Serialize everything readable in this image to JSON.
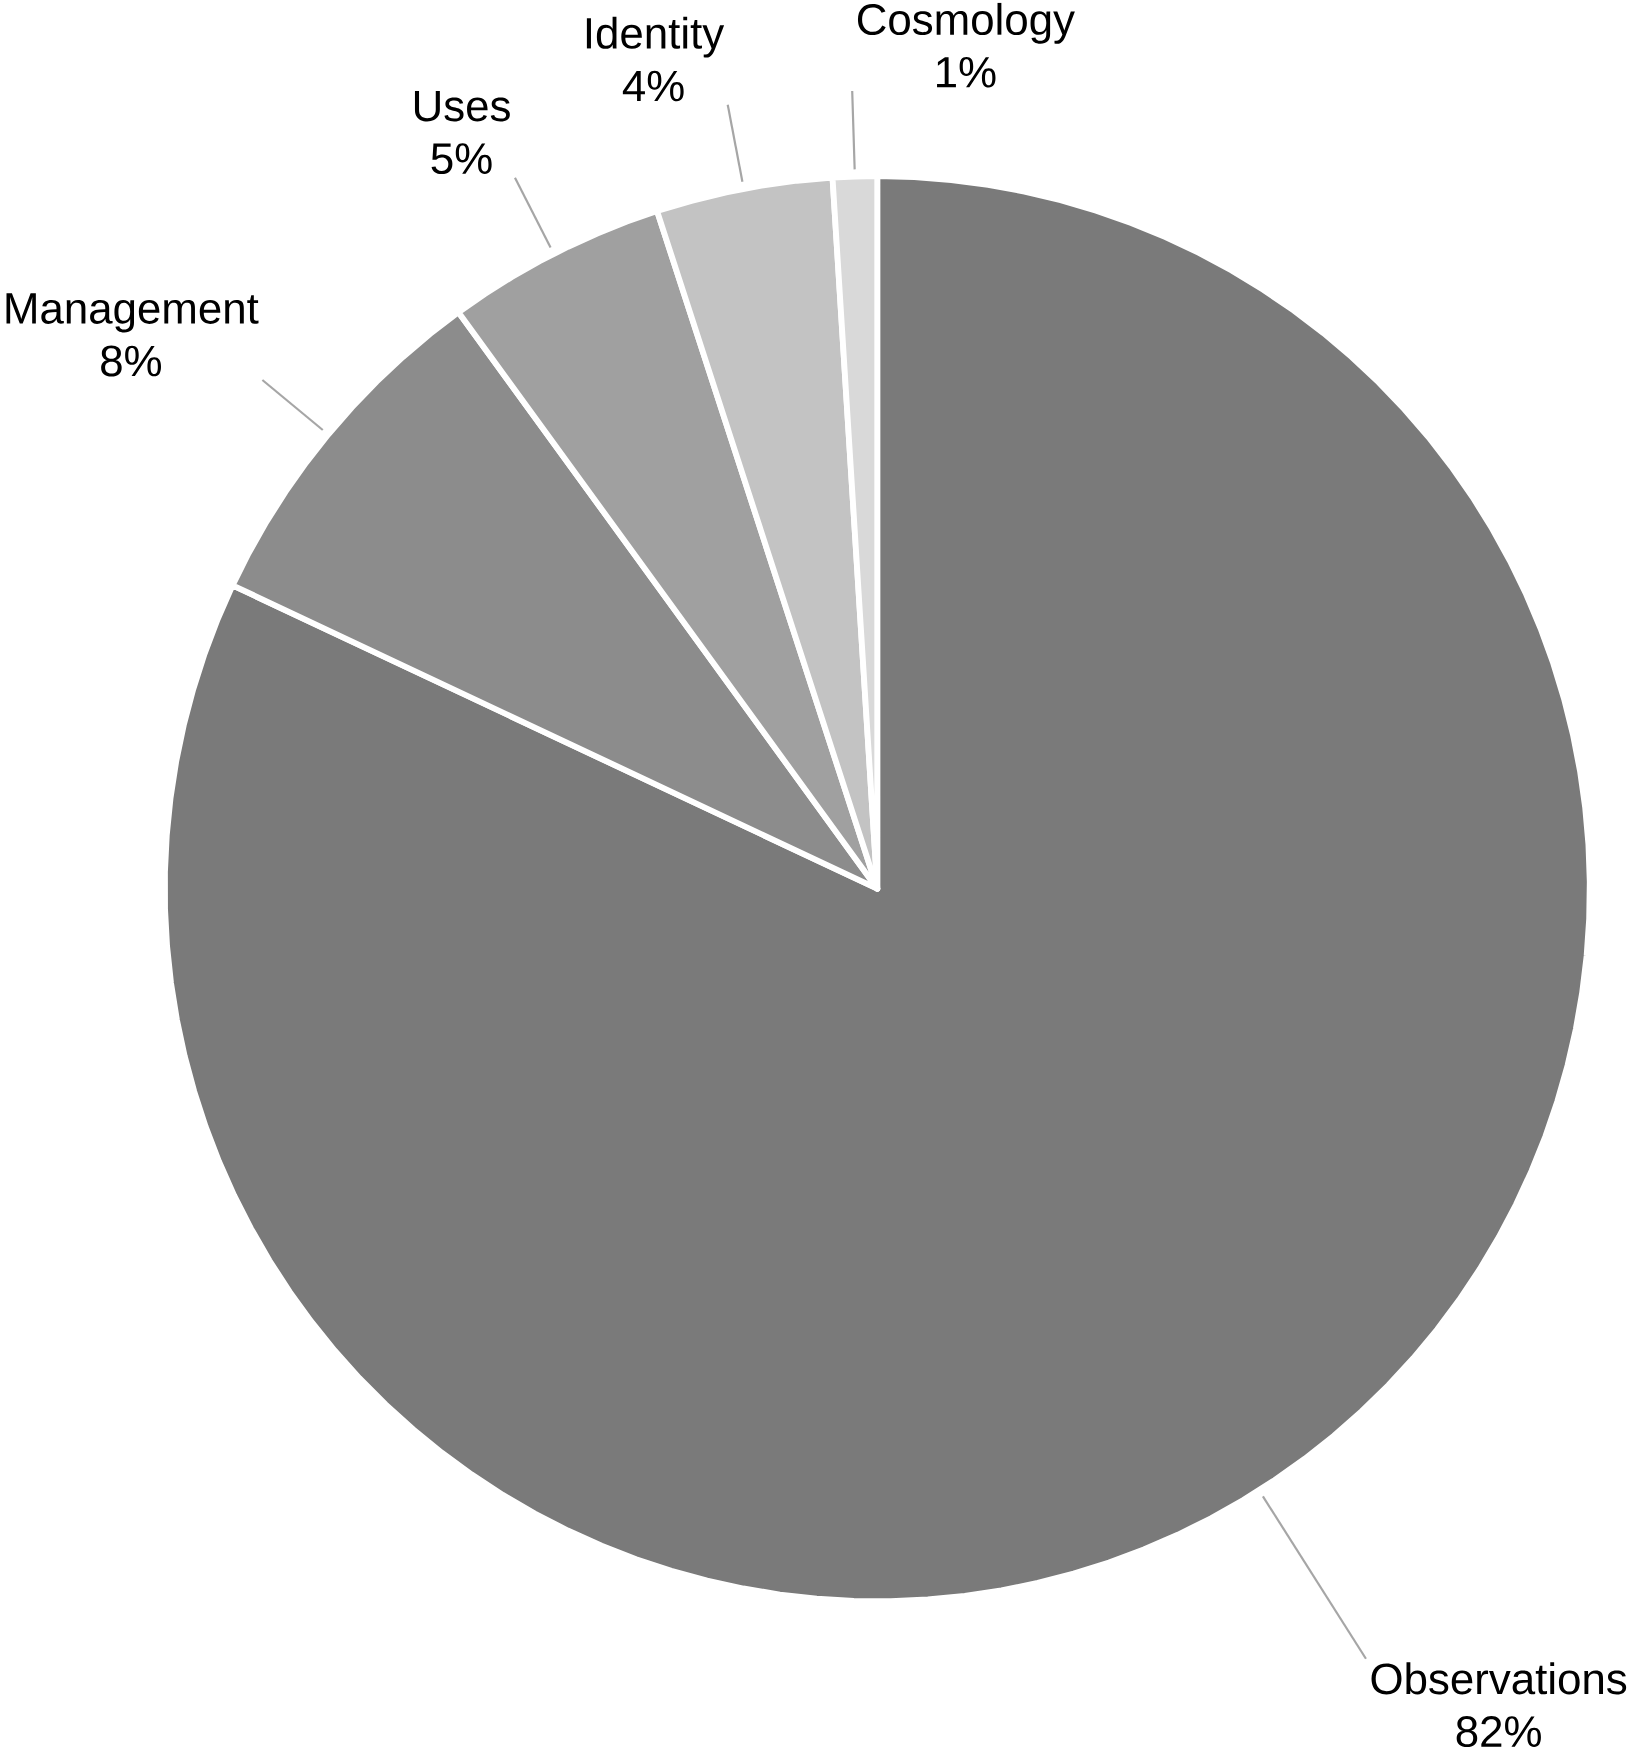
{
  "chart_data": {
    "type": "pie",
    "categories": [
      "Observations",
      "Management",
      "Uses",
      "Identity",
      "Cosmology"
    ],
    "values": [
      82,
      8,
      5,
      4,
      1
    ],
    "value_labels": [
      "82%",
      "8%",
      "5%",
      "4%",
      "1%"
    ],
    "colors": [
      "#7a7a7a",
      "#8c8c8c",
      "#a0a0a0",
      "#c3c3c3",
      "#d9d9d9"
    ]
  }
}
